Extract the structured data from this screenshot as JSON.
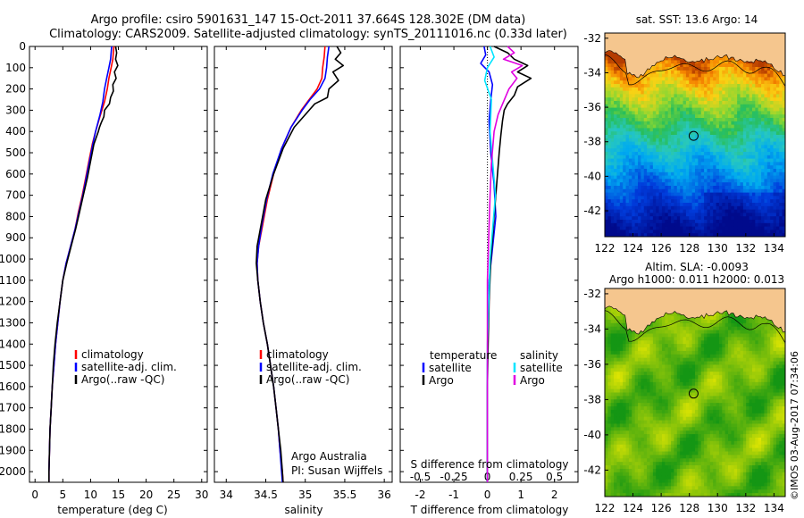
{
  "header": {
    "line1": "Argo profile: csiro 5901631_147 15-Oct-2011 37.664S 128.302E (DM data)",
    "line2": "Climatology: CARS2009. Satellite-adjusted climatology: synTS_20111016.nc (0.33d later)"
  },
  "credit": "©IMOS 03-Aug-2017 07:34:06",
  "colors": {
    "climatology": "#ff0000",
    "satellite": "#0000ff",
    "argo": "#000000",
    "salinity_sat": "#00e5ff",
    "salinity_argo": "#e000e0",
    "land": "#f5c68e"
  },
  "depth_axis": {
    "ylim": [
      0,
      2050
    ],
    "ticks": [
      "0",
      "100",
      "200",
      "300",
      "400",
      "500",
      "600",
      "700",
      "800",
      "900",
      "1000",
      "1100",
      "1200",
      "1300",
      "1400",
      "1500",
      "1600",
      "1700",
      "1800",
      "1900",
      "2000"
    ]
  },
  "chart_data": [
    {
      "type": "line",
      "xlabel": "temperature (deg C)",
      "xlim": [
        -1,
        31
      ],
      "xticks": [
        "0",
        "5",
        "10",
        "15",
        "20",
        "25",
        "30"
      ],
      "legend": [
        "climatology",
        "satellite-adj. clim.",
        "Argo(..raw -QC)"
      ],
      "series": [
        {
          "name": "climatology",
          "points": [
            [
              14.2,
              0
            ],
            [
              14.0,
              60
            ],
            [
              13.7,
              100
            ],
            [
              13.3,
              150
            ],
            [
              13.0,
              200
            ],
            [
              12.5,
              260
            ],
            [
              11.8,
              320
            ],
            [
              10.9,
              400
            ],
            [
              10.3,
              460
            ],
            [
              9.7,
              540
            ],
            [
              9.1,
              620
            ],
            [
              8.5,
              700
            ],
            [
              7.8,
              780
            ],
            [
              7.2,
              860
            ],
            [
              6.4,
              940
            ],
            [
              5.6,
              1020
            ],
            [
              5.0,
              1100
            ],
            [
              4.5,
              1200
            ],
            [
              4.1,
              1300
            ],
            [
              3.7,
              1400
            ],
            [
              3.4,
              1500
            ],
            [
              3.1,
              1600
            ],
            [
              2.9,
              1700
            ],
            [
              2.7,
              1800
            ],
            [
              2.6,
              1900
            ],
            [
              2.5,
              2000
            ],
            [
              2.5,
              2050
            ]
          ]
        },
        {
          "name": "satellite-adj. clim.",
          "points": [
            [
              13.8,
              0
            ],
            [
              13.6,
              60
            ],
            [
              13.3,
              100
            ],
            [
              12.9,
              150
            ],
            [
              12.5,
              200
            ],
            [
              12.2,
              260
            ],
            [
              11.7,
              320
            ],
            [
              10.9,
              400
            ],
            [
              10.4,
              460
            ],
            [
              9.8,
              540
            ],
            [
              9.2,
              620
            ],
            [
              8.6,
              700
            ],
            [
              7.9,
              780
            ],
            [
              7.2,
              860
            ],
            [
              6.4,
              940
            ],
            [
              5.6,
              1020
            ],
            [
              5.0,
              1100
            ],
            [
              4.5,
              1200
            ],
            [
              4.1,
              1300
            ],
            [
              3.7,
              1400
            ],
            [
              3.4,
              1500
            ],
            [
              3.1,
              1600
            ],
            [
              2.9,
              1700
            ],
            [
              2.7,
              1800
            ],
            [
              2.6,
              1900
            ],
            [
              2.5,
              2000
            ],
            [
              2.5,
              2050
            ]
          ]
        },
        {
          "name": "Argo(..raw -QC)",
          "points": [
            [
              14.5,
              0
            ],
            [
              14.7,
              30
            ],
            [
              14.5,
              60
            ],
            [
              14.9,
              90
            ],
            [
              14.3,
              120
            ],
            [
              14.6,
              150
            ],
            [
              14.0,
              180
            ],
            [
              14.1,
              210
            ],
            [
              13.6,
              240
            ],
            [
              13.4,
              270
            ],
            [
              12.5,
              300
            ],
            [
              12.4,
              330
            ],
            [
              11.9,
              360
            ],
            [
              11.6,
              380
            ],
            [
              11.4,
              400
            ],
            [
              10.6,
              460
            ],
            [
              10.0,
              540
            ],
            [
              9.4,
              620
            ],
            [
              8.7,
              700
            ],
            [
              8.0,
              780
            ],
            [
              7.3,
              860
            ],
            [
              6.5,
              940
            ],
            [
              5.7,
              1020
            ],
            [
              5.0,
              1100
            ],
            [
              4.5,
              1200
            ],
            [
              4.0,
              1300
            ],
            [
              3.6,
              1400
            ],
            [
              3.3,
              1500
            ],
            [
              3.1,
              1600
            ],
            [
              2.9,
              1700
            ],
            [
              2.7,
              1800
            ],
            [
              2.6,
              1900
            ],
            [
              2.5,
              2000
            ],
            [
              2.5,
              2050
            ]
          ]
        }
      ]
    },
    {
      "type": "line",
      "xlabel": "salinity",
      "xlim": [
        33.85,
        36.1
      ],
      "xticks": [
        "34",
        "34.5",
        "35",
        "35.5",
        "36"
      ],
      "legend": [
        "climatology",
        "satellite-adj. clim.",
        "Argo(..raw -QC)"
      ],
      "annotations": [
        "Argo Australia",
        "PI: Susan Wijffels"
      ],
      "series": [
        {
          "name": "climatology",
          "points": [
            [
              35.25,
              0
            ],
            [
              35.24,
              50
            ],
            [
              35.22,
              100
            ],
            [
              35.21,
              150
            ],
            [
              35.15,
              200
            ],
            [
              35.05,
              250
            ],
            [
              34.95,
              300
            ],
            [
              34.82,
              380
            ],
            [
              34.7,
              480
            ],
            [
              34.6,
              600
            ],
            [
              34.52,
              720
            ],
            [
              34.46,
              840
            ],
            [
              34.41,
              940
            ],
            [
              34.39,
              1020
            ],
            [
              34.4,
              1100
            ],
            [
              34.43,
              1200
            ],
            [
              34.47,
              1300
            ],
            [
              34.52,
              1400
            ],
            [
              34.56,
              1500
            ],
            [
              34.6,
              1600
            ],
            [
              34.63,
              1700
            ],
            [
              34.66,
              1800
            ],
            [
              34.68,
              1900
            ],
            [
              34.71,
              2000
            ],
            [
              34.72,
              2050
            ]
          ]
        },
        {
          "name": "satellite-adj. clim.",
          "points": [
            [
              35.3,
              0
            ],
            [
              35.28,
              50
            ],
            [
              35.27,
              100
            ],
            [
              35.25,
              150
            ],
            [
              35.18,
              200
            ],
            [
              35.06,
              250
            ],
            [
              34.96,
              300
            ],
            [
              34.82,
              380
            ],
            [
              34.7,
              480
            ],
            [
              34.59,
              600
            ],
            [
              34.51,
              720
            ],
            [
              34.45,
              840
            ],
            [
              34.41,
              940
            ],
            [
              34.39,
              1020
            ],
            [
              34.4,
              1100
            ],
            [
              34.43,
              1200
            ],
            [
              34.47,
              1300
            ],
            [
              34.52,
              1400
            ],
            [
              34.56,
              1500
            ],
            [
              34.6,
              1600
            ],
            [
              34.63,
              1700
            ],
            [
              34.66,
              1800
            ],
            [
              34.68,
              1900
            ],
            [
              34.7,
              2000
            ],
            [
              34.71,
              2050
            ]
          ]
        },
        {
          "name": "Argo(..raw -QC)",
          "points": [
            [
              35.4,
              0
            ],
            [
              35.45,
              30
            ],
            [
              35.38,
              60
            ],
            [
              35.48,
              90
            ],
            [
              35.35,
              120
            ],
            [
              35.42,
              160
            ],
            [
              35.3,
              200
            ],
            [
              35.28,
              240
            ],
            [
              35.12,
              270
            ],
            [
              35.05,
              300
            ],
            [
              34.86,
              380
            ],
            [
              34.72,
              480
            ],
            [
              34.6,
              600
            ],
            [
              34.5,
              720
            ],
            [
              34.44,
              840
            ],
            [
              34.39,
              940
            ],
            [
              34.38,
              1020
            ],
            [
              34.4,
              1100
            ],
            [
              34.43,
              1200
            ],
            [
              34.47,
              1300
            ],
            [
              34.52,
              1400
            ],
            [
              34.56,
              1500
            ],
            [
              34.6,
              1600
            ],
            [
              34.63,
              1700
            ],
            [
              34.66,
              1800
            ],
            [
              34.69,
              1900
            ],
            [
              34.71,
              2000
            ],
            [
              34.72,
              2050
            ]
          ]
        }
      ]
    },
    {
      "type": "line",
      "xlabel": "T difference from climatology",
      "xlabel_top": "S difference from climatology",
      "xlim": [
        -2.6,
        2.7
      ],
      "xticks": [
        "-2",
        "-1",
        "0",
        "1",
        "2"
      ],
      "xlim_top": [
        -0.65,
        0.675
      ],
      "xticks_top": [
        "-0.5",
        "-0.25",
        "0",
        "0.25",
        "0.5"
      ],
      "legend": {
        "temperature": [
          "satellite",
          "Argo"
        ],
        "salinity": [
          "satellite",
          "Argo"
        ]
      },
      "legend_titles": [
        "temperature",
        "salinity"
      ],
      "series": [
        {
          "name": "temperature satellite",
          "points": [
            [
              -0.1,
              0
            ],
            [
              -0.05,
              40
            ],
            [
              -0.2,
              80
            ],
            [
              0.05,
              120
            ],
            [
              0.15,
              180
            ],
            [
              0.1,
              250
            ],
            [
              0.05,
              350
            ],
            [
              0.1,
              500
            ],
            [
              0.2,
              650
            ],
            [
              0.25,
              800
            ],
            [
              0.15,
              950
            ],
            [
              0.05,
              1100
            ],
            [
              0.02,
              1300
            ],
            [
              0.0,
              1500
            ],
            [
              0.0,
              2050
            ]
          ]
        },
        {
          "name": "temperature Argo",
          "points": [
            [
              0.2,
              0
            ],
            [
              0.6,
              30
            ],
            [
              0.8,
              60
            ],
            [
              1.2,
              90
            ],
            [
              0.9,
              120
            ],
            [
              1.3,
              150
            ],
            [
              0.9,
              190
            ],
            [
              0.8,
              230
            ],
            [
              0.6,
              270
            ],
            [
              0.5,
              300
            ],
            [
              0.45,
              350
            ],
            [
              0.4,
              420
            ],
            [
              0.35,
              500
            ],
            [
              0.3,
              600
            ],
            [
              0.25,
              700
            ],
            [
              0.2,
              800
            ],
            [
              0.15,
              900
            ],
            [
              0.1,
              1000
            ],
            [
              0.05,
              1200
            ],
            [
              0.02,
              1400
            ],
            [
              0.0,
              1600
            ],
            [
              0.0,
              2050
            ]
          ]
        },
        {
          "name": "salinity satellite",
          "points": [
            [
              0.02,
              0
            ],
            [
              0.05,
              50
            ],
            [
              0.0,
              100
            ],
            [
              -0.02,
              160
            ],
            [
              0.03,
              250
            ],
            [
              0.02,
              400
            ],
            [
              0.04,
              550
            ],
            [
              0.06,
              700
            ],
            [
              0.04,
              850
            ],
            [
              0.02,
              1000
            ],
            [
              0.01,
              1200
            ],
            [
              0.0,
              1400
            ],
            [
              0.0,
              2050
            ]
          ]
        },
        {
          "name": "salinity Argo",
          "points": [
            [
              0.15,
              0
            ],
            [
              0.2,
              30
            ],
            [
              0.12,
              60
            ],
            [
              0.26,
              90
            ],
            [
              0.18,
              120
            ],
            [
              0.22,
              150
            ],
            [
              0.16,
              200
            ],
            [
              0.12,
              260
            ],
            [
              0.08,
              320
            ],
            [
              0.05,
              400
            ],
            [
              0.03,
              550
            ],
            [
              0.02,
              700
            ],
            [
              0.01,
              900
            ],
            [
              0.0,
              1100
            ],
            [
              0.0,
              2050
            ]
          ]
        }
      ]
    },
    {
      "type": "heatmap",
      "title": "sat. SST: 13.6  Argo: 14",
      "xlim": [
        122,
        134.8
      ],
      "ylim": [
        -43.5,
        -31.7
      ],
      "xticks": [
        "122",
        "124",
        "126",
        "128",
        "130",
        "132",
        "134"
      ],
      "yticks": [
        "-32",
        "-34",
        "-36",
        "-38",
        "-40",
        "-42"
      ],
      "marker": {
        "lon": 128.3,
        "lat": -37.66
      }
    },
    {
      "type": "heatmap",
      "title_lines": [
        "Altim. SLA: -0.0093",
        "Argo h1000: 0.011 h2000: 0.013"
      ],
      "xlim": [
        122,
        134.8
      ],
      "ylim": [
        -43.5,
        -31.7
      ],
      "xticks": [
        "122",
        "124",
        "126",
        "128",
        "130",
        "132",
        "134"
      ],
      "yticks": [
        "-32",
        "-34",
        "-36",
        "-38",
        "-40",
        "-42"
      ],
      "marker": {
        "lon": 128.3,
        "lat": -37.66
      }
    }
  ]
}
